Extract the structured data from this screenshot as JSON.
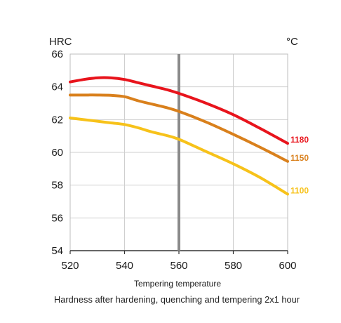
{
  "chart_data": {
    "type": "line",
    "y_unit_label": "HRC",
    "x_unit_label": "°C",
    "xlabel": "Tempering temperature",
    "caption": "Hardness after hardening, quenching and tempering  2x1 hour",
    "xlim": [
      520,
      600
    ],
    "ylim": [
      54,
      66
    ],
    "x_ticks": [
      "520",
      "540",
      "560",
      "580",
      "600"
    ],
    "y_ticks": [
      "54",
      "56",
      "58",
      "60",
      "62",
      "64",
      "66"
    ],
    "grid": true,
    "reference_line_x": 560,
    "series": [
      {
        "name": "1180",
        "color": "#e8141c",
        "x": [
          520,
          525,
          530,
          535,
          540,
          545,
          550,
          555,
          560,
          570,
          580,
          590,
          600
        ],
        "y": [
          64.3,
          64.45,
          64.55,
          64.55,
          64.45,
          64.25,
          64.05,
          63.85,
          63.6,
          63.0,
          62.3,
          61.45,
          60.55
        ]
      },
      {
        "name": "1150",
        "color": "#d9801c",
        "x": [
          520,
          525,
          530,
          535,
          540,
          545,
          550,
          555,
          560,
          570,
          580,
          590,
          600
        ],
        "y": [
          63.5,
          63.5,
          63.5,
          63.48,
          63.4,
          63.15,
          62.95,
          62.75,
          62.5,
          61.85,
          61.1,
          60.3,
          59.45
        ]
      },
      {
        "name": "1100",
        "color": "#f7c21a",
        "x": [
          520,
          525,
          530,
          535,
          540,
          545,
          550,
          555,
          560,
          570,
          580,
          590,
          600
        ],
        "y": [
          62.1,
          62.0,
          61.9,
          61.8,
          61.7,
          61.5,
          61.25,
          61.05,
          60.8,
          60.05,
          59.3,
          58.45,
          57.45
        ]
      }
    ]
  }
}
